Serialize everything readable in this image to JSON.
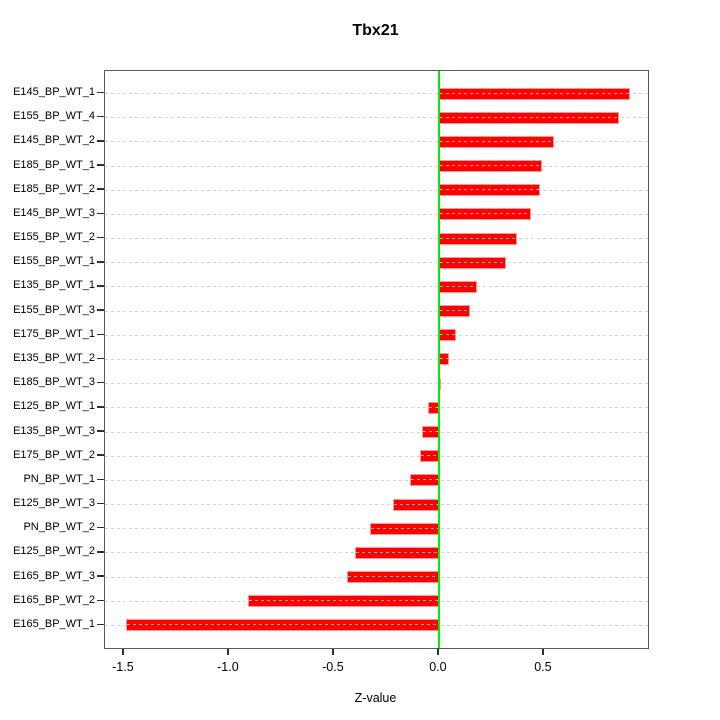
{
  "chart_data": {
    "type": "bar",
    "orientation": "horizontal",
    "title": "Tbx21",
    "xlabel": "Z-value",
    "categories": [
      "E145_BP_WT_1",
      "E155_BP_WT_4",
      "E145_BP_WT_2",
      "E185_BP_WT_1",
      "E185_BP_WT_2",
      "E145_BP_WT_3",
      "E155_BP_WT_2",
      "E155_BP_WT_1",
      "E135_BP_WT_1",
      "E155_BP_WT_3",
      "E175_BP_WT_1",
      "E135_BP_WT_2",
      "E185_BP_WT_3",
      "E125_BP_WT_1",
      "E135_BP_WT_3",
      "E175_BP_WT_2",
      "PN_BP_WT_1",
      "E125_BP_WT_3",
      "PN_BP_WT_2",
      "E125_BP_WT_2",
      "E165_BP_WT_3",
      "E165_BP_WT_2",
      "E165_BP_WT_1"
    ],
    "values": [
      0.91,
      0.86,
      0.55,
      0.49,
      0.48,
      0.44,
      0.37,
      0.32,
      0.18,
      0.15,
      0.08,
      0.05,
      0.005,
      -0.05,
      -0.08,
      -0.09,
      -0.14,
      -0.22,
      -0.33,
      -0.4,
      -0.44,
      -0.91,
      -1.49
    ],
    "xticks": [
      -1.5,
      -1.0,
      -0.5,
      0.0,
      0.5
    ],
    "xtick_labels": [
      "-1.5",
      "-1.0",
      "-0.5",
      "0.0",
      "0.5"
    ],
    "xlim": [
      -1.59,
      0.995
    ],
    "grid": true,
    "legend": "none",
    "bar_color": "#ff0000",
    "bar_border_color": "#ff9999",
    "zero_line_color": "#00ee00",
    "grid_color": "#d5d5d5"
  }
}
